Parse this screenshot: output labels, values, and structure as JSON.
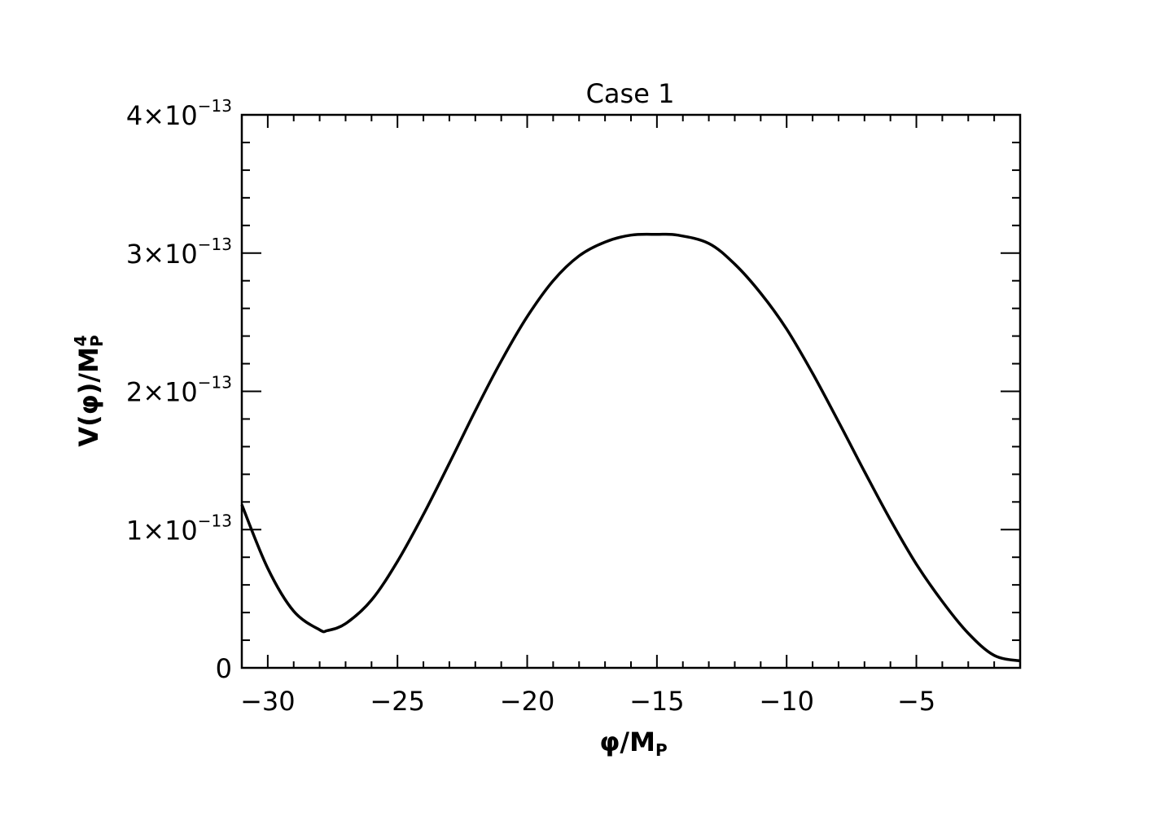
{
  "chart_data": {
    "type": "line",
    "title": "Case 1",
    "xlabel": {
      "main": "φ/M",
      "sub": "P"
    },
    "ylabel": {
      "main": "V(φ)/M",
      "sub": "P",
      "sup": "4"
    },
    "xlim": [
      -31,
      -1
    ],
    "ylim": [
      0,
      4e-13
    ],
    "x_ticks": [
      {
        "value": -30,
        "label": "−30"
      },
      {
        "value": -25,
        "label": "−25"
      },
      {
        "value": -20,
        "label": "−20"
      },
      {
        "value": -15,
        "label": "−15"
      },
      {
        "value": -10,
        "label": "−10"
      },
      {
        "value": -5,
        "label": "−5"
      }
    ],
    "y_ticks": [
      {
        "value": 0,
        "mant": "0",
        "exp": ""
      },
      {
        "value": 1e-13,
        "mant": "1×10",
        "exp": "−13"
      },
      {
        "value": 2e-13,
        "mant": "2×10",
        "exp": "−13"
      },
      {
        "value": 3e-13,
        "mant": "3×10",
        "exp": "−13"
      },
      {
        "value": 4e-13,
        "mant": "4×10",
        "exp": "−13"
      }
    ],
    "series": [
      {
        "color": "#000000",
        "x": [
          -31,
          -30,
          -29,
          -28,
          -27.7,
          -27,
          -26,
          -25,
          -24,
          -23,
          -22,
          -21,
          -20,
          -19,
          -18,
          -17,
          -16,
          -15,
          -14.2,
          -13,
          -12,
          -11,
          -10,
          -9,
          -8,
          -7,
          -6,
          -5,
          -4,
          -3,
          -2,
          -1
        ],
        "y": [
          1.18e-13,
          7.2e-14,
          4.1e-14,
          2.75e-14,
          2.7e-14,
          3.2e-14,
          4.9e-14,
          7.7e-14,
          1.11e-13,
          1.48e-13,
          1.86e-13,
          2.22e-13,
          2.54e-13,
          2.8e-13,
          2.98e-13,
          3.08e-13,
          3.13e-13,
          3.135e-13,
          3.13e-13,
          3.07e-13,
          2.92e-13,
          2.71e-13,
          2.45e-13,
          2.13e-13,
          1.78e-13,
          1.42e-13,
          1.07e-13,
          7.5e-14,
          4.8e-14,
          2.5e-14,
          9e-15,
          5e-15
        ]
      }
    ]
  }
}
